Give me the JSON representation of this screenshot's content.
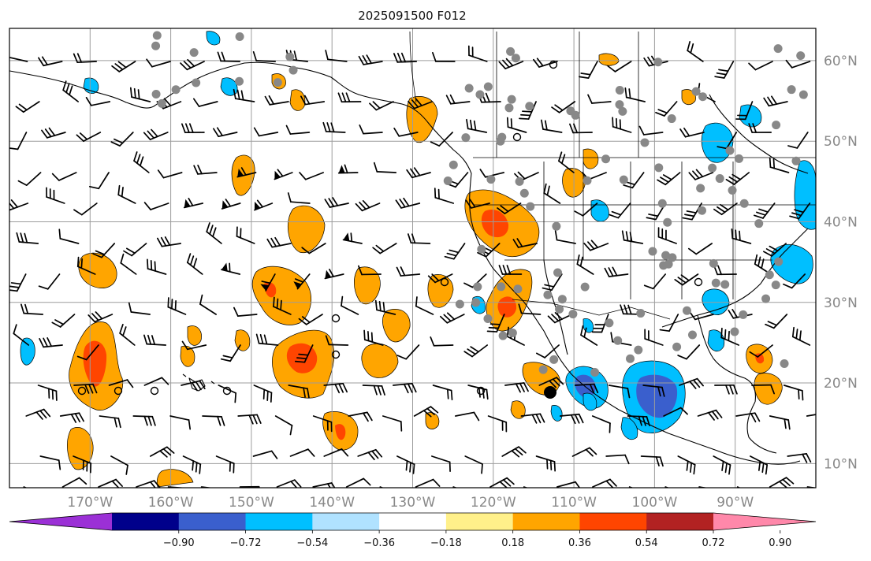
{
  "title": "2025091500 F012",
  "map": {
    "lon_range": [
      -180,
      -80
    ],
    "lat_range": [
      7,
      64
    ],
    "lat_labels": [
      {
        "lat": 60,
        "label": "60°N"
      },
      {
        "lat": 50,
        "label": "50°N"
      },
      {
        "lat": 40,
        "label": "40°N"
      },
      {
        "lat": 30,
        "label": "30°N"
      },
      {
        "lat": 20,
        "label": "20°N"
      },
      {
        "lat": 10,
        "label": "10°N"
      }
    ],
    "lon_labels": [
      {
        "lon": -170,
        "label": "170°W"
      },
      {
        "lon": -160,
        "label": "160°W"
      },
      {
        "lon": -150,
        "label": "150°W"
      },
      {
        "lon": -140,
        "label": "140°W"
      },
      {
        "lon": -130,
        "label": "130°W"
      },
      {
        "lon": -120,
        "label": "120°W"
      },
      {
        "lon": -110,
        "label": "110°W"
      },
      {
        "lon": -100,
        "label": "100°W"
      },
      {
        "lon": -90,
        "label": "90°W"
      }
    ],
    "grid": true
  },
  "colorbar": {
    "colors": [
      "#9b30d6",
      "#00008b",
      "#3a5fcd",
      "#00bfff",
      "#b0e2ff",
      "#ffffff",
      "#fff08a",
      "#ffa500",
      "#ff4500",
      "#b22222",
      "#ff88aa"
    ],
    "tick_labels": [
      "−0.90",
      "−0.72",
      "−0.54",
      "−0.36",
      "−0.18",
      "0.18",
      "0.36",
      "0.54",
      "0.72",
      "0.90"
    ],
    "extend": "both"
  }
}
